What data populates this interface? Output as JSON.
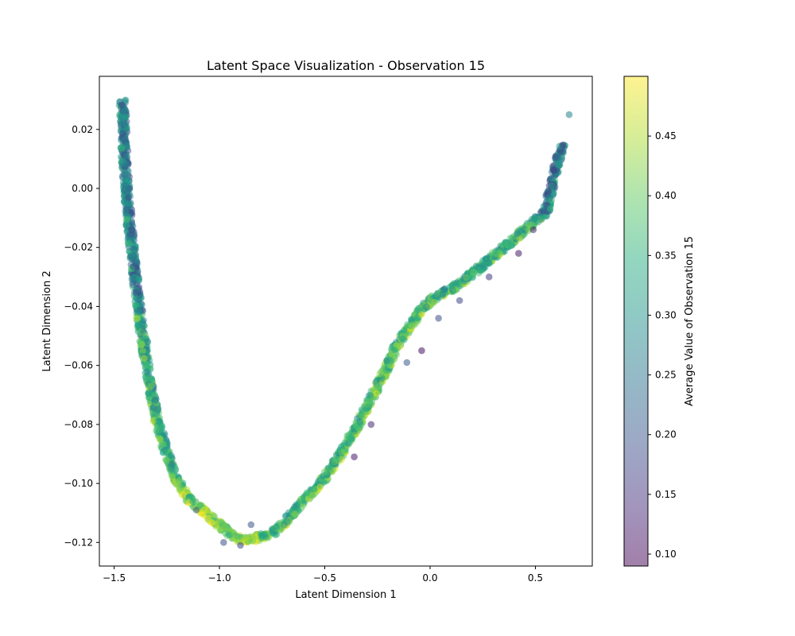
{
  "chart_data": {
    "type": "scatter",
    "title": "Latent Space Visualization - Observation 15",
    "xlabel": "Latent Dimension 1",
    "ylabel": "Latent Dimension 2",
    "xlim": [
      -1.57,
      0.77
    ],
    "ylim": [
      -0.128,
      0.038
    ],
    "x_ticks": [
      -1.5,
      -1.0,
      -0.5,
      0.0,
      0.5
    ],
    "x_tick_labels": [
      "−1.5",
      "−1.0",
      "−0.5",
      "0.0",
      "0.5"
    ],
    "y_ticks": [
      -0.12,
      -0.1,
      -0.08,
      -0.06,
      -0.04,
      -0.02,
      0.0,
      0.02
    ],
    "y_tick_labels": [
      "−0.12",
      "−0.10",
      "−0.08",
      "−0.06",
      "−0.04",
      "−0.02",
      "0.00",
      "0.02"
    ],
    "grid": false,
    "colorbar": {
      "label": "Average Value of Observation 15",
      "colormap": "viridis",
      "alpha": 0.5,
      "range": [
        0.09,
        0.5
      ],
      "ticks": [
        0.1,
        0.15,
        0.2,
        0.25,
        0.3,
        0.35,
        0.4,
        0.45
      ],
      "tick_labels": [
        "0.10",
        "0.15",
        "0.20",
        "0.25",
        "0.30",
        "0.35",
        "0.40",
        "0.45"
      ]
    },
    "trend_curve": {
      "x": [
        -1.46,
        -1.45,
        -1.43,
        -1.4,
        -1.37,
        -1.34,
        -1.3,
        -1.25,
        -1.2,
        -1.15,
        -1.1,
        -1.05,
        -1.0,
        -0.95,
        -0.9,
        -0.85,
        -0.8,
        -0.75,
        -0.7,
        -0.65,
        -0.6,
        -0.55,
        -0.5,
        -0.45,
        -0.4,
        -0.35,
        -0.3,
        -0.25,
        -0.2,
        -0.15,
        -0.1,
        -0.05,
        0.0,
        0.05,
        0.1,
        0.15,
        0.2,
        0.25,
        0.3,
        0.35,
        0.4,
        0.45,
        0.5,
        0.55,
        0.6,
        0.63
      ],
      "y": [
        0.03,
        0.01,
        -0.01,
        -0.03,
        -0.048,
        -0.062,
        -0.078,
        -0.09,
        -0.099,
        -0.105,
        -0.108,
        -0.111,
        -0.114,
        -0.117,
        -0.119,
        -0.119,
        -0.118,
        -0.117,
        -0.114,
        -0.11,
        -0.106,
        -0.102,
        -0.098,
        -0.093,
        -0.087,
        -0.081,
        -0.074,
        -0.067,
        -0.06,
        -0.052,
        -0.047,
        -0.042,
        -0.038,
        -0.036,
        -0.034,
        -0.032,
        -0.029,
        -0.026,
        -0.023,
        -0.02,
        -0.017,
        -0.014,
        -0.011,
        -0.008,
        0.008,
        0.015
      ]
    },
    "outliers": [
      {
        "x": 0.66,
        "y": 0.025,
        "value": 0.27
      },
      {
        "x": 0.42,
        "y": -0.022,
        "value": 0.12
      },
      {
        "x": 0.28,
        "y": -0.03,
        "value": 0.16
      },
      {
        "x": 0.14,
        "y": -0.038,
        "value": 0.18
      },
      {
        "x": 0.04,
        "y": -0.044,
        "value": 0.19
      },
      {
        "x": -0.04,
        "y": -0.055,
        "value": 0.11
      },
      {
        "x": -0.11,
        "y": -0.059,
        "value": 0.21
      },
      {
        "x": -0.36,
        "y": -0.091,
        "value": 0.12
      },
      {
        "x": -0.28,
        "y": -0.08,
        "value": 0.14
      },
      {
        "x": -0.85,
        "y": -0.114,
        "value": 0.2
      },
      {
        "x": -0.9,
        "y": -0.121,
        "value": 0.18
      },
      {
        "x": -1.11,
        "y": -0.109,
        "value": 0.21
      },
      {
        "x": -0.98,
        "y": -0.12,
        "value": 0.19
      },
      {
        "x": 0.49,
        "y": -0.014,
        "value": 0.14
      },
      {
        "x": -1.34,
        "y": -0.052,
        "value": 0.27
      }
    ]
  }
}
